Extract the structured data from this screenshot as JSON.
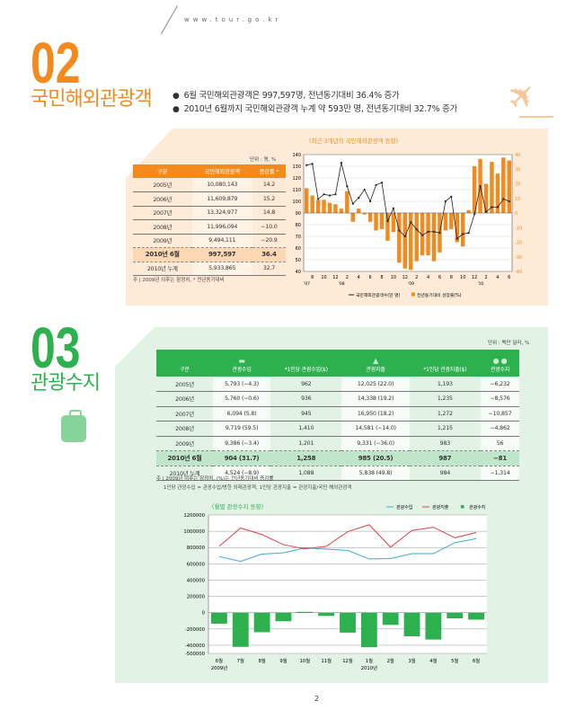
{
  "header": {
    "url": "www.tour.go.kr"
  },
  "section02": {
    "number": "02",
    "title": "국민해외관광객",
    "bullets": [
      "6월 국민해외관광객은 997,597명, 전년동기대비 36.4% 증가",
      "2010년 6월까지 국민해외관광객 누계 약 593만 명, 전년동기대비 32.7% 증가"
    ],
    "unit": "단위 : 명, %",
    "table": {
      "headers": [
        "구분",
        "국민해외관광객",
        "증감률 *"
      ],
      "rows": [
        [
          "2005년",
          "10,080,143",
          "14.2"
        ],
        [
          "2006년",
          "11,609,879",
          "15.2"
        ],
        [
          "2007년",
          "13,324,977",
          "14.8"
        ],
        [
          "2008년",
          "11,996,094",
          "−10.0"
        ],
        [
          "2009년",
          "9,494,111",
          "−20.9"
        ],
        [
          "2010년 6월",
          "997,597",
          "36.4"
        ],
        [
          "2010년 누계",
          "5,933,865",
          "32.7"
        ]
      ]
    },
    "note": "주 | 2009년 이후는 잠정치, * 전년동기대비"
  },
  "section03": {
    "number": "03",
    "title": "관광수지",
    "unit": "단위 : 백만 달러, %",
    "table": {
      "headers": [
        "구분",
        "관광수입",
        "*1인당 관광수입($)",
        "관광지출",
        "*1인당 관광지출($)",
        "관광수지"
      ],
      "rows": [
        [
          "2005년",
          "5,793 (−4.3)",
          "962",
          "12,025 (22.0)",
          "1,193",
          "−6,232"
        ],
        [
          "2006년",
          "5,760 (−0.6)",
          "936",
          "14,338 (19.2)",
          "1,235",
          "−8,576"
        ],
        [
          "2007년",
          "6,094 (5.8)",
          "945",
          "16,950 (18.2)",
          "1,272",
          "−10,857"
        ],
        [
          "2008년",
          "9,719 (59.5)",
          "1,410",
          "14,581 (−14.0)",
          "1,215",
          "−4,862"
        ],
        [
          "2009년",
          "9,386 (−3.4)",
          "1,201",
          "9,331 (−36.0)",
          "983",
          "56"
        ],
        [
          "2010년 6월",
          "904 (31.7)",
          "1,258",
          "985 (20.5)",
          "987",
          "−81"
        ],
        [
          "2010년 누계",
          "4,524 (−8.9)",
          "1,088",
          "5,838 (49.8)",
          "984",
          "−1,314"
        ]
      ]
    },
    "notes": [
      "주 | 2009년 이후는 잠정치, (%)는 전년동기대비 증감률",
      "1인당 관광수입 = 관광수입/방한 외래관광객, 1인당 관광지출 = 관광지출/국민 해외관광객"
    ]
  },
  "page_number": "2",
  "chart_data": [
    {
      "type": "bar+line",
      "title": "〈최근 3개년의 국민해외관광객 동향〉",
      "x_tick_labels": [
        "8",
        "10",
        "12",
        "2",
        "4",
        "6",
        "8",
        "10",
        "12",
        "2",
        "4",
        "6",
        "8",
        "10",
        "12",
        "2",
        "4",
        "6"
      ],
      "year_labels": [
        "'07",
        "'08",
        "'09",
        "'10"
      ],
      "y_left": {
        "range": [
          40,
          140
        ],
        "ticks": [
          40,
          50,
          60,
          70,
          80,
          90,
          100,
          110,
          120,
          130,
          140
        ]
      },
      "y_right": {
        "range": [
          -40,
          40
        ],
        "ticks": [
          -40,
          -30,
          -20,
          -10,
          0,
          10,
          20,
          30,
          40
        ]
      },
      "legend": {
        "line": "국민해외관광객수(만 명)",
        "bar": "전년동기대비 성장률(%)"
      },
      "legend_position": "bottom",
      "months": [
        "2007-07",
        "2007-08",
        "2007-09",
        "2007-10",
        "2007-11",
        "2007-12",
        "2008-01",
        "2008-02",
        "2008-03",
        "2008-04",
        "2008-05",
        "2008-06",
        "2008-07",
        "2008-08",
        "2008-09",
        "2008-10",
        "2008-11",
        "2008-12",
        "2009-01",
        "2009-02",
        "2009-03",
        "2009-04",
        "2009-05",
        "2009-06",
        "2009-07",
        "2009-08",
        "2009-09",
        "2009-10",
        "2009-11",
        "2009-12",
        "2010-01",
        "2010-02",
        "2010-03",
        "2010-04",
        "2010-05",
        "2010-06"
      ],
      "line_values": [
        131,
        132,
        102,
        106,
        105,
        106,
        133,
        113,
        98,
        103,
        110,
        100,
        114,
        116,
        83,
        94,
        75,
        70,
        82,
        76,
        71,
        74,
        74,
        73,
        100,
        104,
        68,
        72,
        73,
        89,
        113,
        91,
        95,
        95,
        102,
        100
      ],
      "bar_values": [
        17,
        12,
        9,
        9,
        7,
        6,
        3,
        15,
        -6,
        3,
        -1,
        -6,
        -12,
        -11,
        -19,
        -13,
        -34,
        -38,
        -39,
        -33,
        -29,
        -29,
        -33,
        -27,
        -12,
        -11,
        -20,
        -23,
        2,
        32,
        37,
        20,
        35,
        27,
        38,
        36
      ],
      "colors": {
        "line": "#222222",
        "bar": "#f28a1e"
      }
    },
    {
      "type": "bar+line",
      "title": "〈월별 관광수지 동향〉",
      "categories": [
        "6월",
        "7월",
        "8월",
        "9월",
        "10월",
        "11월",
        "12월",
        "1월",
        "2월",
        "3월",
        "4월",
        "5월",
        "6월"
      ],
      "year_labels": [
        "2009년",
        "2010년"
      ],
      "y_range": [
        -500000,
        1200000
      ],
      "y_ticks": [
        1200000,
        1000000,
        800000,
        600000,
        400000,
        200000,
        0,
        -200000,
        -400000,
        -500000
      ],
      "legend_position": "top-right",
      "series": [
        {
          "name": "관광수입",
          "type": "line",
          "color": "#3aa9d8",
          "values": [
            690000,
            630000,
            720000,
            735000,
            795000,
            780000,
            765000,
            660000,
            665000,
            725000,
            725000,
            860000,
            910000
          ]
        },
        {
          "name": "관광지출",
          "type": "line",
          "color": "#d9454a",
          "values": [
            815000,
            1040000,
            960000,
            835000,
            785000,
            815000,
            995000,
            1080000,
            805000,
            1010000,
            1050000,
            920000,
            985000
          ]
        },
        {
          "name": "관광수지",
          "type": "bar",
          "color": "#2db14f",
          "values": [
            -135000,
            -420000,
            -240000,
            -105000,
            10000,
            -40000,
            -245000,
            -425000,
            -150000,
            -290000,
            -330000,
            -70000,
            -85000
          ]
        }
      ]
    }
  ]
}
